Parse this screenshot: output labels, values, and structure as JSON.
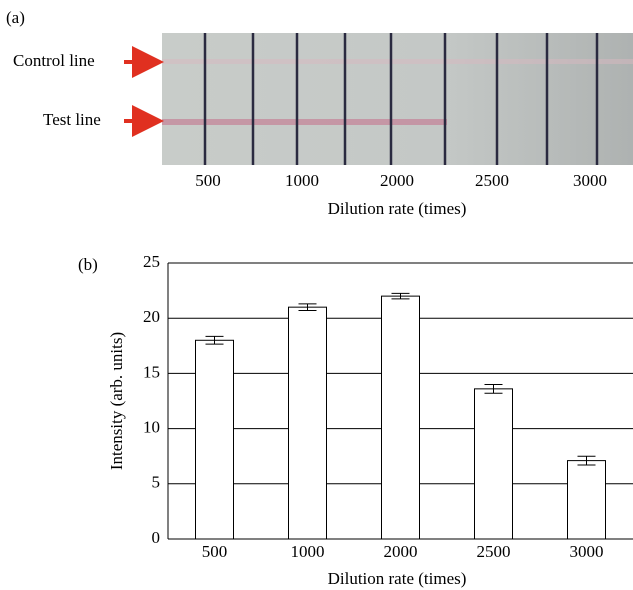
{
  "panel_a": {
    "label": "(a)",
    "row_labels": [
      "Control line",
      "Test line"
    ],
    "categories": [
      "500",
      "1000",
      "2000",
      "2500",
      "3000"
    ],
    "xlabel": "Dilution rate (times)"
  },
  "chart_data": {
    "type": "bar",
    "panel_label": "(b)",
    "xlabel": "Dilution rate (times)",
    "ylabel": "Intensity (arb. units)",
    "categories": [
      "500",
      "1000",
      "2000",
      "2500",
      "3000"
    ],
    "values": [
      18,
      21,
      22,
      13.6,
      7.1
    ],
    "errors": [
      0.35,
      0.3,
      0.25,
      0.4,
      0.4
    ],
    "color": "#ffffff",
    "ylim": [
      0,
      25
    ],
    "yticks": [
      0,
      5,
      10,
      15,
      20,
      25
    ],
    "grid": true
  }
}
